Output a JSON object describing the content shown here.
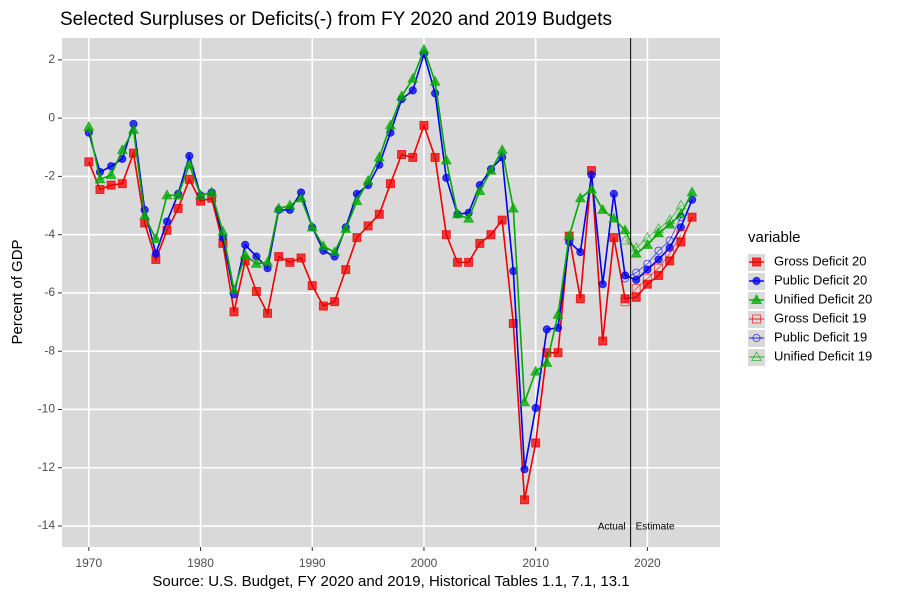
{
  "chart_data": {
    "type": "line",
    "title": "Selected Surpluses or Deficits(-) from FY 2020 and 2019 Budgets",
    "x_label": "Source: U.S. Budget, FY 2020 and 2019, Historical Tables 1.1, 7.1, 13.1",
    "y_label": "Percent of GDP",
    "legend_title": "variable",
    "legend_position": "right",
    "grid": true,
    "xlim": [
      1967.6,
      2026.5
    ],
    "xticks": [
      1970,
      1980,
      1990,
      2000,
      2010,
      2020
    ],
    "ylim": [
      -14.72,
      2.75
    ],
    "yticks": [
      -14,
      -12,
      -10,
      -8,
      -6,
      -4,
      -2,
      0,
      2
    ],
    "vline": 2018.5,
    "annotations": [
      "Actual",
      "Estimate"
    ],
    "series": [
      {
        "name": "Gross Deficit 20",
        "color": "#ee0000",
        "marker": "square",
        "filled": true,
        "x": [
          1970,
          1971,
          1972,
          1973,
          1974,
          1975,
          1976,
          1977,
          1978,
          1979,
          1980,
          1981,
          1982,
          1983,
          1984,
          1985,
          1986,
          1987,
          1988,
          1989,
          1990,
          1991,
          1992,
          1993,
          1994,
          1995,
          1996,
          1997,
          1998,
          1999,
          2000,
          2001,
          2002,
          2003,
          2004,
          2005,
          2006,
          2007,
          2008,
          2009,
          2010,
          2011,
          2012,
          2013,
          2014,
          2015,
          2016,
          2017,
          2018,
          2019,
          2020,
          2021,
          2022,
          2023,
          2024
        ],
        "values": [
          -1.5,
          -2.45,
          -2.3,
          -2.25,
          -1.2,
          -3.6,
          -4.85,
          -3.85,
          -3.1,
          -2.1,
          -2.85,
          -2.75,
          -4.3,
          -6.65,
          -4.9,
          -5.95,
          -6.7,
          -4.75,
          -4.95,
          -4.8,
          -5.75,
          -6.45,
          -6.3,
          -5.2,
          -4.1,
          -3.7,
          -3.3,
          -2.25,
          -1.25,
          -1.35,
          -0.25,
          -1.35,
          -4.0,
          -4.95,
          -4.95,
          -4.3,
          -4.0,
          -3.5,
          -7.05,
          -13.1,
          -11.15,
          -8.05,
          -8.05,
          -4.05,
          -6.2,
          -1.8,
          -7.65,
          -4.1,
          -6.2,
          -6.15,
          -5.7,
          -5.4,
          -4.9,
          -4.25,
          -3.4
        ]
      },
      {
        "name": "Public Deficit 20",
        "color": "#0000ee",
        "marker": "circle",
        "filled": true,
        "x": [
          1970,
          1971,
          1972,
          1973,
          1974,
          1975,
          1976,
          1977,
          1978,
          1979,
          1980,
          1981,
          1982,
          1983,
          1984,
          1985,
          1986,
          1987,
          1988,
          1989,
          1990,
          1991,
          1992,
          1993,
          1994,
          1995,
          1996,
          1997,
          1998,
          1999,
          2000,
          2001,
          2002,
          2003,
          2004,
          2005,
          2006,
          2007,
          2008,
          2009,
          2010,
          2011,
          2012,
          2013,
          2014,
          2015,
          2016,
          2017,
          2018,
          2019,
          2020,
          2021,
          2022,
          2023,
          2024
        ],
        "values": [
          -0.5,
          -1.85,
          -1.65,
          -1.4,
          -0.2,
          -3.15,
          -4.65,
          -3.55,
          -2.6,
          -1.3,
          -2.65,
          -2.55,
          -4.1,
          -6.05,
          -4.35,
          -4.75,
          -5.15,
          -3.15,
          -3.15,
          -2.55,
          -3.75,
          -4.55,
          -4.75,
          -3.75,
          -2.6,
          -2.3,
          -1.6,
          -0.5,
          0.65,
          0.95,
          2.2,
          0.85,
          -2.05,
          -3.3,
          -3.25,
          -2.3,
          -1.75,
          -1.35,
          -5.25,
          -12.05,
          -9.95,
          -7.25,
          -7.2,
          -4.25,
          -4.6,
          -1.95,
          -5.7,
          -2.6,
          -5.4,
          -5.55,
          -5.2,
          -4.85,
          -4.45,
          -3.75,
          -2.8
        ]
      },
      {
        "name": "Unified Deficit 20",
        "color": "#00aa00",
        "marker": "triangle",
        "filled": true,
        "x": [
          1970,
          1971,
          1972,
          1973,
          1974,
          1975,
          1976,
          1977,
          1978,
          1979,
          1980,
          1981,
          1982,
          1983,
          1984,
          1985,
          1986,
          1987,
          1988,
          1989,
          1990,
          1991,
          1992,
          1993,
          1994,
          1995,
          1996,
          1997,
          1998,
          1999,
          2000,
          2001,
          2002,
          2003,
          2004,
          2005,
          2006,
          2007,
          2008,
          2009,
          2010,
          2011,
          2012,
          2013,
          2014,
          2015,
          2016,
          2017,
          2018,
          2019,
          2020,
          2021,
          2022,
          2023,
          2024
        ],
        "values": [
          -0.3,
          -2.1,
          -1.95,
          -1.1,
          -0.4,
          -3.35,
          -4.15,
          -2.65,
          -2.65,
          -1.6,
          -2.65,
          -2.55,
          -3.9,
          -5.9,
          -4.7,
          -5.0,
          -4.95,
          -3.1,
          -3.0,
          -2.75,
          -3.75,
          -4.4,
          -4.6,
          -3.8,
          -2.85,
          -2.15,
          -1.35,
          -0.25,
          0.75,
          1.35,
          2.35,
          1.25,
          -1.45,
          -3.3,
          -3.45,
          -2.5,
          -1.8,
          -1.1,
          -3.1,
          -9.75,
          -8.7,
          -8.4,
          -6.75,
          -4.05,
          -2.75,
          -2.45,
          -3.15,
          -3.45,
          -3.85,
          -4.65,
          -4.35,
          -3.95,
          -3.65,
          -3.3,
          -2.55
        ]
      },
      {
        "name": "Gross Deficit 19",
        "color": "#ee0000",
        "marker": "square",
        "filled": false,
        "x": [
          2018,
          2019,
          2020,
          2021,
          2022,
          2023
        ],
        "values": [
          -6.3,
          -5.85,
          -5.5,
          -5.15,
          -4.65,
          -4.0
        ]
      },
      {
        "name": "Public Deficit 19",
        "color": "#0000ee",
        "marker": "circle",
        "filled": false,
        "x": [
          2018,
          2019,
          2020,
          2021,
          2022,
          2023
        ],
        "values": [
          -5.5,
          -5.3,
          -5.0,
          -4.55,
          -4.2,
          -3.4
        ]
      },
      {
        "name": "Unified Deficit 19",
        "color": "#00aa00",
        "marker": "triangle",
        "filled": false,
        "x": [
          2018,
          2019,
          2020,
          2021,
          2022,
          2023
        ],
        "values": [
          -4.2,
          -4.45,
          -4.1,
          -3.8,
          -3.5,
          -3.0
        ]
      }
    ]
  }
}
